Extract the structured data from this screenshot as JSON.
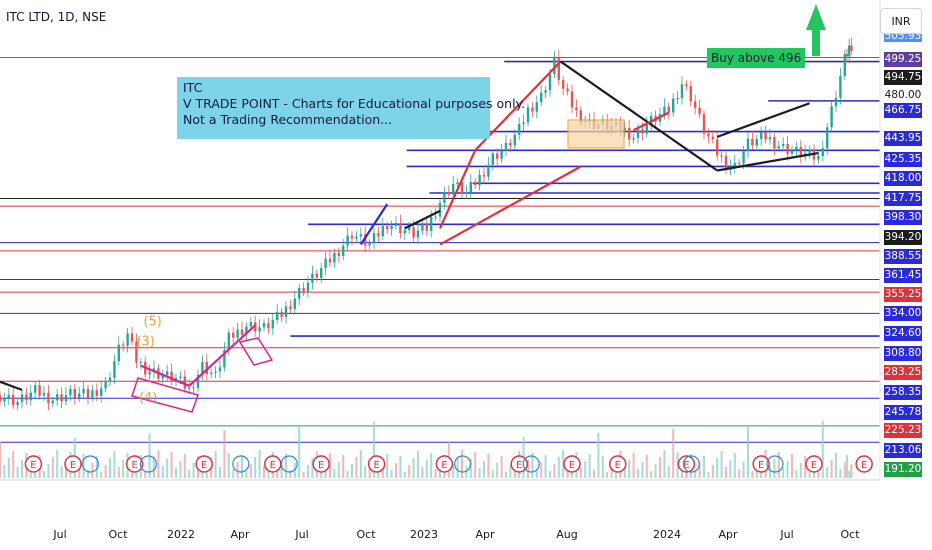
{
  "header": {
    "symbol_line": "ITC LTD, 1D, NSE"
  },
  "currency_button": "INR",
  "annotation_box": {
    "lines": [
      "ITC",
      "V TRADE POINT - Charts for Educational purposes only.",
      "Not a Trading Recommendation..."
    ]
  },
  "buy_callout": "Buy above 496",
  "chart_data": {
    "type": "candlestick",
    "title": "ITC LTD, 1D, NSE",
    "currency": "INR",
    "ylim": [
      185,
      512
    ],
    "x_ticks": [
      "Jul",
      "Oct",
      "2022",
      "Apr",
      "Jul",
      "Oct",
      "2023",
      "Apr",
      "Aug",
      "2024",
      "Apr",
      "Jul",
      "Oct"
    ],
    "price_levels": [
      {
        "value": "505.93",
        "bg": "#4f8ff7",
        "fg": "#ffffff",
        "partial": true
      },
      {
        "value": "499.25",
        "bg": "#5b3fa0",
        "fg": "#ffffff"
      },
      {
        "value": "494.75",
        "bg": "#1c1c1c",
        "fg": "#ffffff"
      },
      {
        "value": "480.00",
        "bg": "#ffffff",
        "fg": "#131722"
      },
      {
        "value": "466.75",
        "bg": "#2a2ad6",
        "fg": "#ffffff"
      },
      {
        "value": "443.95",
        "bg": "#2a2ad6",
        "fg": "#ffffff"
      },
      {
        "value": "425.35",
        "bg": "#2a2ad6",
        "fg": "#ffffff"
      },
      {
        "value": "418.00",
        "bg": "#2a2ad6",
        "fg": "#ffffff"
      },
      {
        "value": "417.75",
        "bg": "#2a2ad6",
        "fg": "#ffffff"
      },
      {
        "value": "398.30",
        "bg": "#2a2ad6",
        "fg": "#ffffff"
      },
      {
        "value": "394.20",
        "bg": "#1c1c1c",
        "fg": "#ffffff"
      },
      {
        "value": "388.55",
        "bg": "#2a2ad6",
        "fg": "#ffffff"
      },
      {
        "value": "361.45",
        "bg": "#2a2ad6",
        "fg": "#ffffff"
      },
      {
        "value": "355.25",
        "bg": "#e0303a",
        "fg": "#ffffff"
      },
      {
        "value": "334.00",
        "bg": "#2a2ad6",
        "fg": "#ffffff"
      },
      {
        "value": "324.60",
        "bg": "#2a2ad6",
        "fg": "#ffffff"
      },
      {
        "value": "308.80",
        "bg": "#2a2ad6",
        "fg": "#ffffff"
      },
      {
        "value": "283.25",
        "bg": "#e0303a",
        "fg": "#ffffff"
      },
      {
        "value": "258.35",
        "bg": "#2a2ad6",
        "fg": "#ffffff"
      },
      {
        "value": "245.78",
        "bg": "#2a2ad6",
        "fg": "#ffffff"
      },
      {
        "value": "225.23",
        "bg": "#e0303a",
        "fg": "#ffffff"
      },
      {
        "value": "213.06",
        "bg": "#2a2ad6",
        "fg": "#ffffff"
      },
      {
        "value": "191.20",
        "bg": "#22a046",
        "fg": "#ffffff"
      }
    ],
    "horizontal_lines": [
      {
        "y": 499.0,
        "color": "#2c7cb0"
      },
      {
        "y": 496.0,
        "color": "#3a2a8a",
        "from_x": 0.573
      },
      {
        "y": 466.75,
        "color": "#2a2ad6",
        "from_x": 0.873
      },
      {
        "y": 443.95,
        "color": "#2a2ad6",
        "from_x": 0.462
      },
      {
        "y": 430.0,
        "color": "#2a2ad6",
        "from_x": 0.462
      },
      {
        "y": 418.0,
        "color": "#2a2ad6",
        "from_x": 0.462
      },
      {
        "y": 405.5,
        "color": "#2a2ad6",
        "from_x": 0.537
      },
      {
        "y": 398.3,
        "color": "#2a2ad6",
        "from_x": 0.488
      },
      {
        "y": 394.2,
        "color": "#1c1c1c"
      },
      {
        "y": 388.55,
        "color": "#e0303a"
      },
      {
        "y": 375.0,
        "color": "#2a2ad6",
        "from_x": 0.35
      },
      {
        "y": 361.45,
        "color": "#2a2ad6"
      },
      {
        "y": 355.25,
        "color": "#e0303a"
      },
      {
        "y": 334.0,
        "color": "#2a2ad6"
      },
      {
        "y": 324.6,
        "color": "#e0303a"
      },
      {
        "y": 308.8,
        "color": "#2a2ad6"
      },
      {
        "y": 292.0,
        "color": "#2a2ad6",
        "from_x": 0.33
      },
      {
        "y": 283.25,
        "color": "#e0303a"
      },
      {
        "y": 258.35,
        "color": "#e0303a"
      },
      {
        "y": 245.78,
        "color": "#2a2ad6"
      },
      {
        "y": 225.23,
        "color": "#22a046"
      },
      {
        "y": 213.06,
        "color": "#2a2ad6"
      }
    ],
    "price_path_approx": [
      [
        0.0,
        248
      ],
      [
        0.02,
        243
      ],
      [
        0.04,
        251
      ],
      [
        0.06,
        245
      ],
      [
        0.08,
        249
      ],
      [
        0.1,
        248
      ],
      [
        0.12,
        256
      ],
      [
        0.135,
        282
      ],
      [
        0.145,
        293
      ],
      [
        0.155,
        274
      ],
      [
        0.165,
        268
      ],
      [
        0.18,
        264
      ],
      [
        0.2,
        260
      ],
      [
        0.215,
        252
      ],
      [
        0.23,
        270
      ],
      [
        0.245,
        262
      ],
      [
        0.26,
        290
      ],
      [
        0.28,
        300
      ],
      [
        0.3,
        298
      ],
      [
        0.32,
        308
      ],
      [
        0.34,
        325
      ],
      [
        0.36,
        338
      ],
      [
        0.38,
        352
      ],
      [
        0.4,
        368
      ],
      [
        0.42,
        360
      ],
      [
        0.44,
        376
      ],
      [
        0.455,
        372
      ],
      [
        0.47,
        368
      ],
      [
        0.485,
        372
      ],
      [
        0.5,
        392
      ],
      [
        0.515,
        405
      ],
      [
        0.53,
        398
      ],
      [
        0.545,
        410
      ],
      [
        0.56,
        425
      ],
      [
        0.575,
        432
      ],
      [
        0.59,
        445
      ],
      [
        0.6,
        460
      ],
      [
        0.615,
        470
      ],
      [
        0.63,
        495
      ],
      [
        0.64,
        475
      ],
      [
        0.655,
        458
      ],
      [
        0.67,
        450
      ],
      [
        0.69,
        448
      ],
      [
        0.71,
        445
      ],
      [
        0.72,
        440
      ],
      [
        0.74,
        452
      ],
      [
        0.76,
        460
      ],
      [
        0.775,
        480
      ],
      [
        0.785,
        470
      ],
      [
        0.8,
        445
      ],
      [
        0.815,
        428
      ],
      [
        0.825,
        420
      ],
      [
        0.835,
        418
      ],
      [
        0.85,
        435
      ],
      [
        0.87,
        440
      ],
      [
        0.89,
        432
      ],
      [
        0.91,
        428
      ],
      [
        0.93,
        424
      ],
      [
        0.945,
        460
      ],
      [
        0.96,
        498
      ],
      [
        0.965,
        507
      ],
      [
        0.97,
        492
      ]
    ],
    "trend_lines": [
      {
        "from": [
          0.0,
          258
        ],
        "to": [
          0.025,
          252
        ],
        "color": "#1c1c1c"
      },
      {
        "from": [
          0.16,
          270
        ],
        "to": [
          0.215,
          255
        ],
        "color": "#e0208a"
      },
      {
        "from": [
          0.215,
          255
        ],
        "to": [
          0.29,
          300
        ],
        "color": "#e0208a"
      },
      {
        "from": [
          0.41,
          360
        ],
        "to": [
          0.44,
          390
        ],
        "color": "#2a2ad6"
      },
      {
        "from": [
          0.46,
          372
        ],
        "to": [
          0.5,
          385
        ],
        "color": "#1c1c1c"
      },
      {
        "from": [
          0.5,
          372
        ],
        "to": [
          0.54,
          430
        ],
        "color": "#e0303a"
      },
      {
        "from": [
          0.54,
          430
        ],
        "to": [
          0.637,
          496
        ],
        "color": "#e0303a"
      },
      {
        "from": [
          0.5,
          360
        ],
        "to": [
          0.66,
          418
        ],
        "color": "#e0303a"
      },
      {
        "from": [
          0.637,
          496
        ],
        "to": [
          0.815,
          415
        ],
        "color": "#1c1c1c"
      },
      {
        "from": [
          0.815,
          415
        ],
        "to": [
          0.93,
          428
        ],
        "color": "#1c1c1c"
      },
      {
        "from": [
          0.815,
          440
        ],
        "to": [
          0.92,
          465
        ],
        "color": "#1c1c1c"
      },
      {
        "from": [
          0.72,
          445
        ],
        "to": [
          0.76,
          458
        ],
        "color": "#e0303a"
      }
    ],
    "wave_labels": [
      {
        "text": "(5)",
        "x": 0.163,
        "y": 300
      },
      {
        "text": "(3)",
        "x": 0.155,
        "y": 285
      },
      {
        "text": "(4)",
        "x": 0.158,
        "y": 243
      }
    ],
    "earnings_markers": [
      0.038,
      0.083,
      0.153,
      0.232,
      0.31,
      0.365,
      0.428,
      0.505,
      0.59,
      0.65,
      0.702,
      0.78,
      0.865,
      0.925,
      0.982
    ],
    "dividend_markers": [
      0.097,
      0.163,
      0.268,
      0.323,
      0.52,
      0.598,
      0.78,
      0.875
    ]
  }
}
